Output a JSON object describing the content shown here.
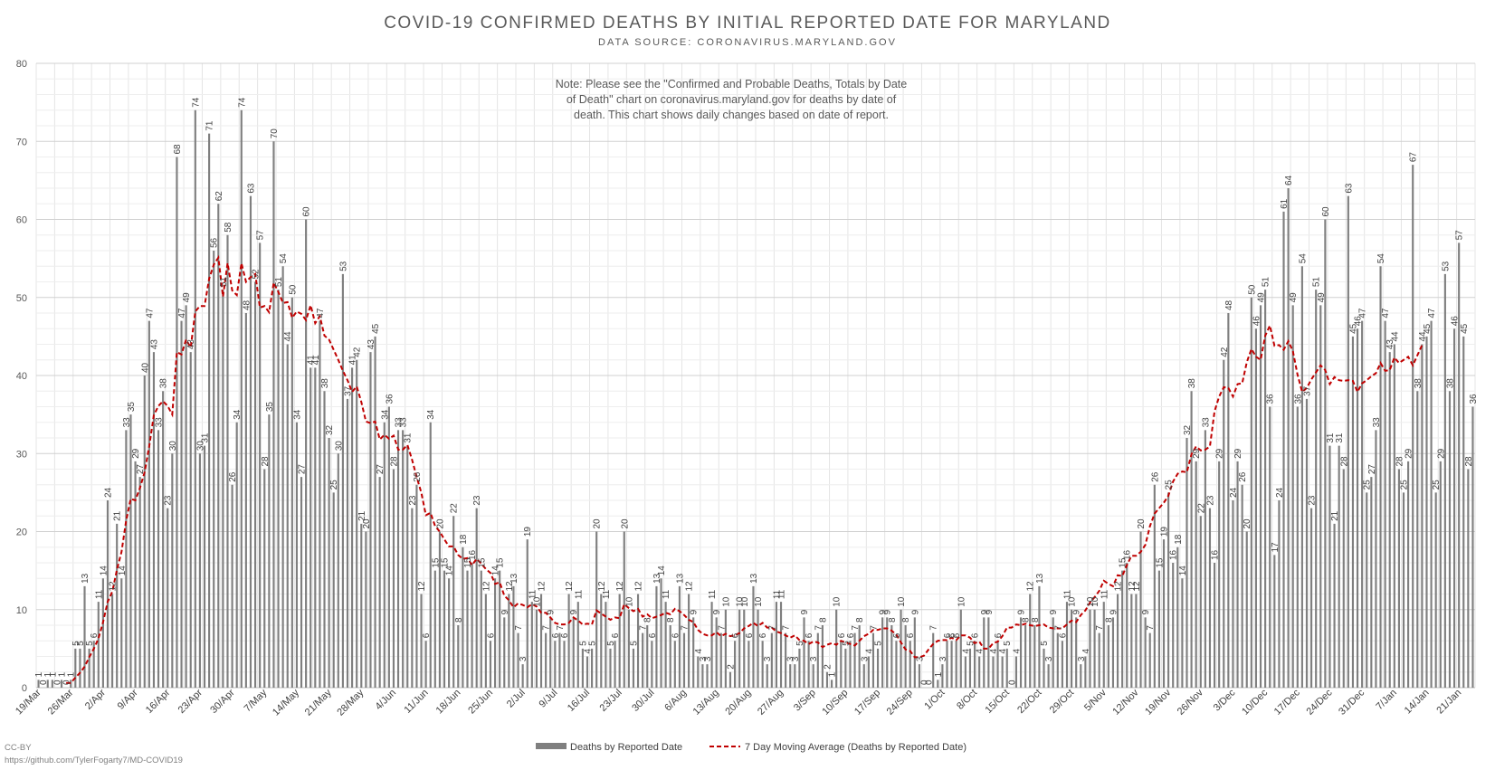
{
  "chart_data": {
    "type": "bar",
    "title": "COVID-19 CONFIRMED DEATHS BY INITIAL REPORTED DATE FOR MARYLAND",
    "subtitle": "DATA SOURCE: CORONAVIRUS.MARYLAND.GOV",
    "note": [
      "Note: Please see the \"Confirmed and Probable Deaths, Totals by Date",
      "of Death\" chart on coronavirus.maryland.gov for deaths by date of",
      "death. This chart shows daily changes based on date of report."
    ],
    "ylim": [
      0,
      80
    ],
    "yticks": [
      0,
      10,
      20,
      30,
      40,
      50,
      60,
      70,
      80
    ],
    "x_tick_labels": [
      "19/Mar",
      "26/Mar",
      "2/Apr",
      "9/Apr",
      "16/Apr",
      "23/Apr",
      "30/Apr",
      "7/May",
      "14/May",
      "21/May",
      "28/May",
      "4/Jun",
      "11/Jun",
      "18/Jun",
      "25/Jun",
      "2/Jul",
      "9/Jul",
      "16/Jul",
      "23/Jul",
      "30/Jul",
      "6/Aug",
      "13/Aug",
      "20/Aug",
      "27/Aug",
      "3/Sep",
      "10/Sep",
      "17/Sep",
      "24/Sep",
      "1/Oct",
      "8/Oct",
      "15/Oct",
      "22/Oct",
      "29/Oct",
      "5/Nov",
      "12/Nov",
      "19/Nov",
      "26/Nov",
      "3/Dec",
      "10/Dec",
      "17/Dec",
      "24/Dec",
      "31/Dec",
      "7/Jan",
      "14/Jan",
      "21/Jan"
    ],
    "series": [
      {
        "name": "Deaths by Reported Date",
        "type": "bar",
        "color": "#7f7f7f",
        "values": [
          1,
          0,
          1,
          1,
          0,
          1,
          0,
          1,
          5,
          5,
          13,
          5,
          6,
          11,
          14,
          24,
          12,
          21,
          14,
          33,
          35,
          29,
          27,
          40,
          47,
          43,
          33,
          38,
          23,
          30,
          68,
          47,
          49,
          43,
          74,
          30,
          31,
          71,
          56,
          62,
          51,
          58,
          26,
          34,
          74,
          48,
          63,
          52,
          57,
          28,
          35,
          70,
          51,
          54,
          44,
          50,
          34,
          27,
          60,
          41,
          41,
          47,
          38,
          32,
          25,
          30,
          53,
          37,
          41,
          42,
          21,
          20,
          43,
          45,
          27,
          34,
          36,
          28,
          33,
          33,
          31,
          23,
          26,
          12,
          6,
          34,
          15,
          20,
          15,
          14,
          22,
          8,
          18,
          15,
          16,
          23,
          15,
          12,
          6,
          14,
          15,
          9,
          12,
          13,
          7,
          3,
          19,
          11,
          10,
          12,
          7,
          9,
          6,
          7,
          6,
          12,
          9,
          11,
          5,
          4,
          5,
          20,
          12,
          11,
          5,
          6,
          12,
          20,
          10,
          5,
          12,
          7,
          8,
          6,
          13,
          14,
          11,
          8,
          6,
          13,
          7,
          12,
          9,
          4,
          3,
          3,
          11,
          9,
          7,
          10,
          2,
          6,
          10,
          10,
          6,
          13,
          10,
          6,
          3,
          7,
          11,
          11,
          7,
          3,
          3,
          5,
          9,
          6,
          3,
          7,
          8,
          2,
          1,
          10,
          6,
          5,
          6,
          7,
          8,
          3,
          4,
          7,
          5,
          9,
          9,
          8,
          6,
          10,
          8,
          6,
          9,
          3,
          0,
          0,
          7,
          1,
          3,
          6,
          6,
          6,
          10,
          4,
          5,
          6,
          4,
          9,
          9,
          4,
          6,
          4,
          5,
          0,
          4,
          9,
          8,
          12,
          8,
          13,
          5,
          3,
          9,
          7,
          6,
          11,
          10,
          9,
          3,
          4,
          10,
          10,
          7,
          11,
          8,
          9,
          12,
          15,
          16,
          12,
          12,
          20,
          9,
          7,
          26,
          15,
          19,
          25,
          16,
          18,
          14,
          32,
          38,
          29,
          22,
          33,
          23,
          16,
          29,
          42,
          48,
          24,
          29,
          26,
          20,
          50,
          46,
          49,
          51,
          36,
          17,
          24,
          61,
          64,
          49,
          36,
          54,
          37,
          23,
          51,
          49,
          60,
          31,
          21,
          31,
          28,
          63,
          45,
          46,
          47,
          25,
          27,
          33,
          54,
          47,
          43,
          44,
          28,
          25,
          29,
          67,
          38,
          44,
          45,
          47,
          25,
          29,
          53,
          38,
          46,
          57,
          45,
          28,
          36
        ]
      },
      {
        "name": "7 Day Moving Average (Deaths by Reported Date)",
        "type": "line",
        "color": "#c00000",
        "values": [
          null,
          null,
          null,
          null,
          null,
          null,
          0.6,
          0.6,
          1.3,
          1.9,
          2.7,
          3.9,
          5.0,
          6.3,
          8.4,
          11.0,
          12.3,
          15.1,
          17.4,
          21.4,
          24.2,
          24.0,
          25.6,
          27.6,
          30.9,
          34.9,
          36.1,
          36.7,
          36.1,
          35.0,
          43.0,
          42.7,
          44.6,
          43.6,
          48.2,
          48.9,
          48.9,
          52.4,
          54.2,
          55.1,
          50.1,
          54.4,
          50.9,
          50.3,
          54.4,
          52.0,
          52.6,
          53.0,
          48.7,
          48.9,
          48.1,
          51.9,
          50.7,
          49.3,
          49.4,
          47.4,
          48.2,
          47.9,
          47.1,
          49.0,
          46.7,
          47.6,
          45.1,
          44.6,
          43.3,
          42.0,
          40.6,
          39.4,
          37.9,
          38.6,
          36.6,
          34.1,
          33.9,
          34.1,
          31.8,
          32.4,
          31.9,
          32.3,
          30.5,
          30.5,
          31.1,
          29.2,
          27.0,
          25.0,
          22.1,
          22.4,
          20.7,
          20.0,
          19.0,
          18.1,
          18.1,
          17.0,
          16.5,
          16.6,
          15.7,
          16.5,
          15.9,
          15.2,
          14.7,
          13.3,
          13.5,
          11.8,
          11.2,
          10.3,
          10.8,
          10.6,
          10.3,
          10.7,
          10.4,
          9.6,
          9.6,
          9.0,
          8.3,
          8.1,
          8.1,
          8.3,
          9.0,
          8.6,
          8.1,
          8.2,
          8.1,
          9.9,
          9.5,
          9.1,
          8.7,
          9.0,
          8.9,
          10.7,
          10.2,
          9.8,
          10.1,
          9.1,
          9.4,
          8.9,
          9.1,
          9.3,
          9.6,
          9.4,
          10.1,
          9.8,
          9.3,
          8.7,
          8.4,
          7.4,
          6.9,
          6.7,
          6.7,
          7.1,
          6.6,
          6.9,
          6.6,
          6.7,
          7.0,
          7.6,
          7.9,
          8.3,
          7.9,
          8.3,
          7.7,
          7.7,
          7.2,
          7.0,
          6.7,
          6.4,
          6.7,
          6.1,
          6.0,
          5.6,
          5.9,
          5.8,
          5.2,
          5.5,
          5.7,
          5.5,
          6.0,
          5.8,
          5.6,
          5.4,
          6.0,
          6.6,
          6.9,
          7.4,
          7.4,
          7.6,
          7.6,
          7.3,
          6.8,
          5.8,
          4.9,
          4.7,
          3.9,
          3.9,
          4.1,
          4.9,
          5.6,
          6.0,
          6.1,
          6.1,
          6.4,
          6.1,
          6.7,
          6.7,
          6.4,
          5.7,
          5.9,
          5.0,
          5.0,
          5.7,
          5.9,
          6.6,
          7.7,
          7.7,
          8.1,
          8.0,
          8.2,
          8.0,
          7.9,
          8.0,
          8.1,
          7.7,
          7.6,
          7.6,
          7.6,
          8.1,
          8.6,
          8.4,
          9.3,
          9.9,
          10.9,
          11.6,
          12.4,
          13.7,
          13.3,
          13.0,
          14.4,
          14.3,
          15.7,
          16.9,
          16.9,
          17.4,
          18.3,
          20.7,
          22.3,
          23.0,
          23.7,
          24.6,
          26.4,
          27.4,
          27.7,
          27.6,
          29.9,
          30.9,
          30.4,
          30.5,
          30.9,
          35.4,
          37.3,
          38.5,
          38.4,
          37.3,
          38.9,
          39.0,
          41.7,
          43.4,
          42.4,
          42.0,
          45.1,
          46.4,
          43.8,
          43.9,
          43.3,
          44.4,
          43.1,
          40.1,
          37.9,
          38.4,
          39.5,
          40.4,
          41.3,
          40.7,
          38.9,
          39.8,
          39.4,
          39.3,
          39.4,
          39.3,
          37.9,
          39.0,
          39.4,
          39.9,
          40.3,
          41.6,
          40.6,
          40.7,
          42.3,
          41.6,
          42.0,
          42.4,
          41.3,
          42.6,
          43.9
        ]
      }
    ],
    "legend": {
      "position": "bottom"
    },
    "grid": true
  },
  "footer": {
    "license": "CC-BY",
    "url": "https://github.com/TylerFogarty7/MD-COVID19"
  }
}
